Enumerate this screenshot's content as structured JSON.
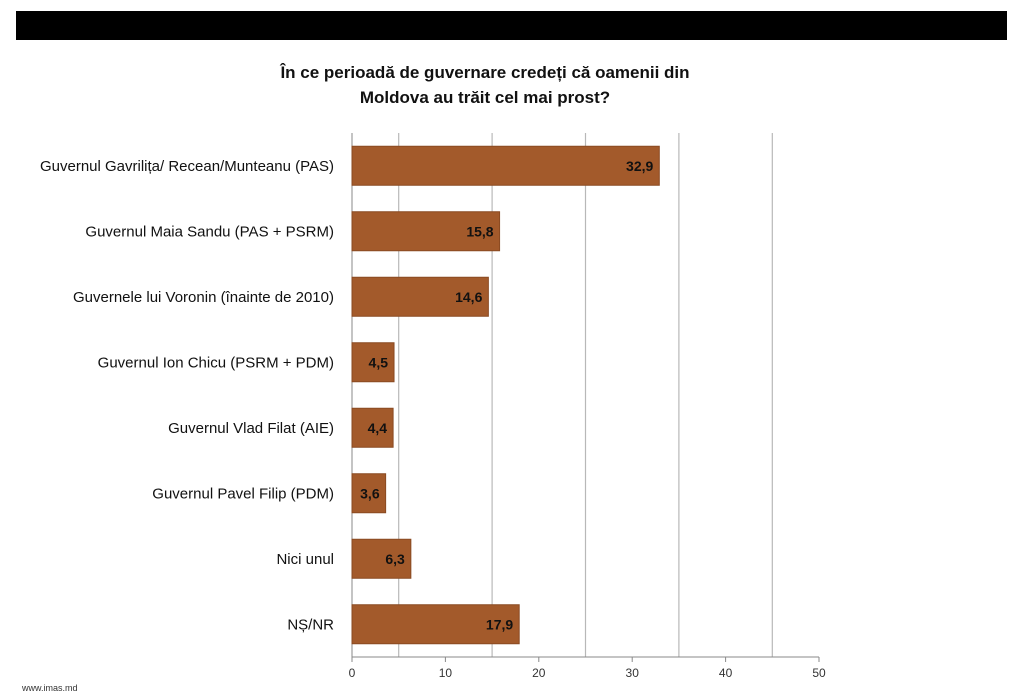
{
  "chart_data": {
    "type": "bar",
    "orientation": "horizontal",
    "title_lines": [
      "În ce perioadă de guvernare credeți că oamenii din",
      "Moldova au trăit cel mai prost?"
    ],
    "categories": [
      "Guvernul Gavrilița/ Recean/Munteanu (PAS)",
      "Guvernul Maia Sandu (PAS + PSRM)",
      "Guvernele lui Voronin (înainte de 2010)",
      "Guvernul Ion Chicu (PSRM + PDM)",
      "Guvernul Vlad Filat (AIE)",
      "Guvernul Pavel Filip (PDM)",
      "Nici unul",
      "NȘ/NR"
    ],
    "values": [
      32.9,
      15.8,
      14.6,
      4.5,
      4.4,
      3.6,
      6.3,
      17.9
    ],
    "value_labels": [
      "32,9",
      "15,8",
      "14,6",
      "4,5",
      "4,4",
      "3,6",
      "6,3",
      "17,9"
    ],
    "xlim": [
      0,
      50
    ],
    "xticks": [
      "0",
      "10",
      "20",
      "30",
      "40",
      "50"
    ],
    "grid": true,
    "bar_color": "#a35a2b",
    "bar_border_color": "#8a4a22",
    "grid_color": "#b8b8b8"
  },
  "footer": {
    "source": "www.imas.md"
  }
}
